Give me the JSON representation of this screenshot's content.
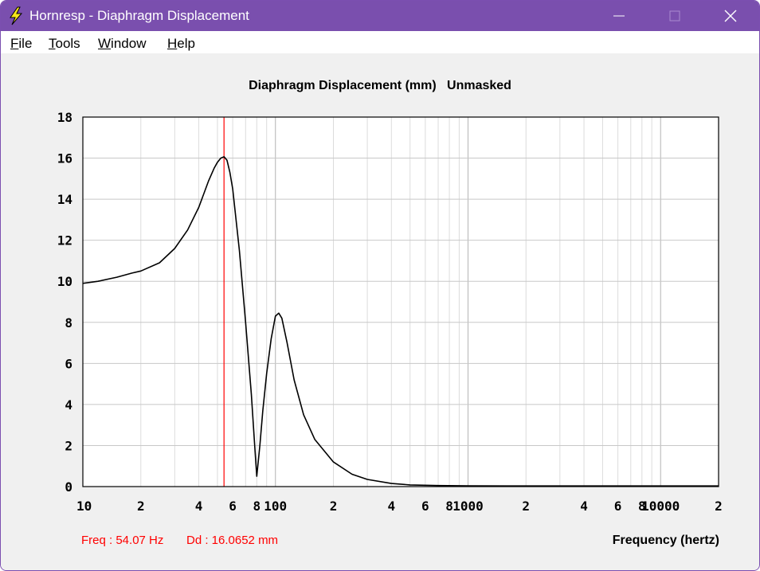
{
  "window": {
    "title": "Hornresp - Diaphragm Displacement",
    "titlebar_color": "#7a4fae",
    "controls": {
      "minimize_icon": "minimize-icon",
      "maximize_icon": "maximize-icon",
      "close_icon": "close-icon"
    }
  },
  "menu": {
    "items": [
      {
        "label": "File",
        "accel": "F",
        "rest": "ile"
      },
      {
        "label": "Tools",
        "accel": "T",
        "rest": "ools"
      },
      {
        "label": "Window",
        "accel": "W",
        "rest": "indow"
      },
      {
        "label": "Help",
        "accel": "H",
        "rest": "elp"
      }
    ]
  },
  "chart_data": {
    "type": "line",
    "title": "Diaphragm Displacement (mm)   Unmasked",
    "xlabel": "Frequency (hertz)",
    "ylabel": "",
    "x_scale": "log",
    "xlim": [
      10,
      20000
    ],
    "ylim": [
      0,
      18
    ],
    "grid": true,
    "y_ticks": [
      0,
      2,
      4,
      6,
      8,
      10,
      12,
      14,
      16,
      18
    ],
    "x_tick_labels": [
      {
        "x": 10,
        "label": "10"
      },
      {
        "x": 20,
        "label": "2"
      },
      {
        "x": 40,
        "label": "4"
      },
      {
        "x": 60,
        "label": "6"
      },
      {
        "x": 80,
        "label": "8"
      },
      {
        "x": 100,
        "label": "100"
      },
      {
        "x": 200,
        "label": "2"
      },
      {
        "x": 400,
        "label": "4"
      },
      {
        "x": 600,
        "label": "6"
      },
      {
        "x": 800,
        "label": "8"
      },
      {
        "x": 1000,
        "label": "1000"
      },
      {
        "x": 2000,
        "label": "2"
      },
      {
        "x": 4000,
        "label": "4"
      },
      {
        "x": 6000,
        "label": "6"
      },
      {
        "x": 8000,
        "label": "8"
      },
      {
        "x": 10000,
        "label": "10000"
      },
      {
        "x": 20000,
        "label": "2"
      }
    ],
    "series": [
      {
        "color": "#000000",
        "x": [
          10,
          12,
          15,
          18,
          20,
          25,
          30,
          35,
          40,
          45,
          48,
          50,
          52,
          54.07,
          56,
          58,
          60,
          65,
          70,
          75,
          78,
          80,
          83,
          86,
          90,
          95,
          100,
          104,
          108,
          115,
          125,
          140,
          160,
          200,
          250,
          300,
          400,
          500,
          700,
          1000,
          2000,
          5000,
          10000,
          20000
        ],
        "y": [
          9.9,
          10.0,
          10.2,
          10.4,
          10.5,
          10.9,
          11.6,
          12.5,
          13.6,
          14.9,
          15.5,
          15.8,
          16.0,
          16.07,
          15.9,
          15.3,
          14.5,
          11.5,
          8.0,
          4.5,
          2.0,
          0.5,
          2.0,
          3.7,
          5.5,
          7.2,
          8.3,
          8.45,
          8.2,
          7.0,
          5.2,
          3.5,
          2.3,
          1.2,
          0.6,
          0.35,
          0.15,
          0.08,
          0.05,
          0.04,
          0.03,
          0.03,
          0.03,
          0.03
        ]
      }
    ],
    "cursor": {
      "x": 54.07,
      "color": "#ff0000"
    }
  },
  "readout": {
    "freq": "Freq : 54.07 Hz",
    "dd": "Dd : 16.0652 mm",
    "color": "#ff0000"
  }
}
